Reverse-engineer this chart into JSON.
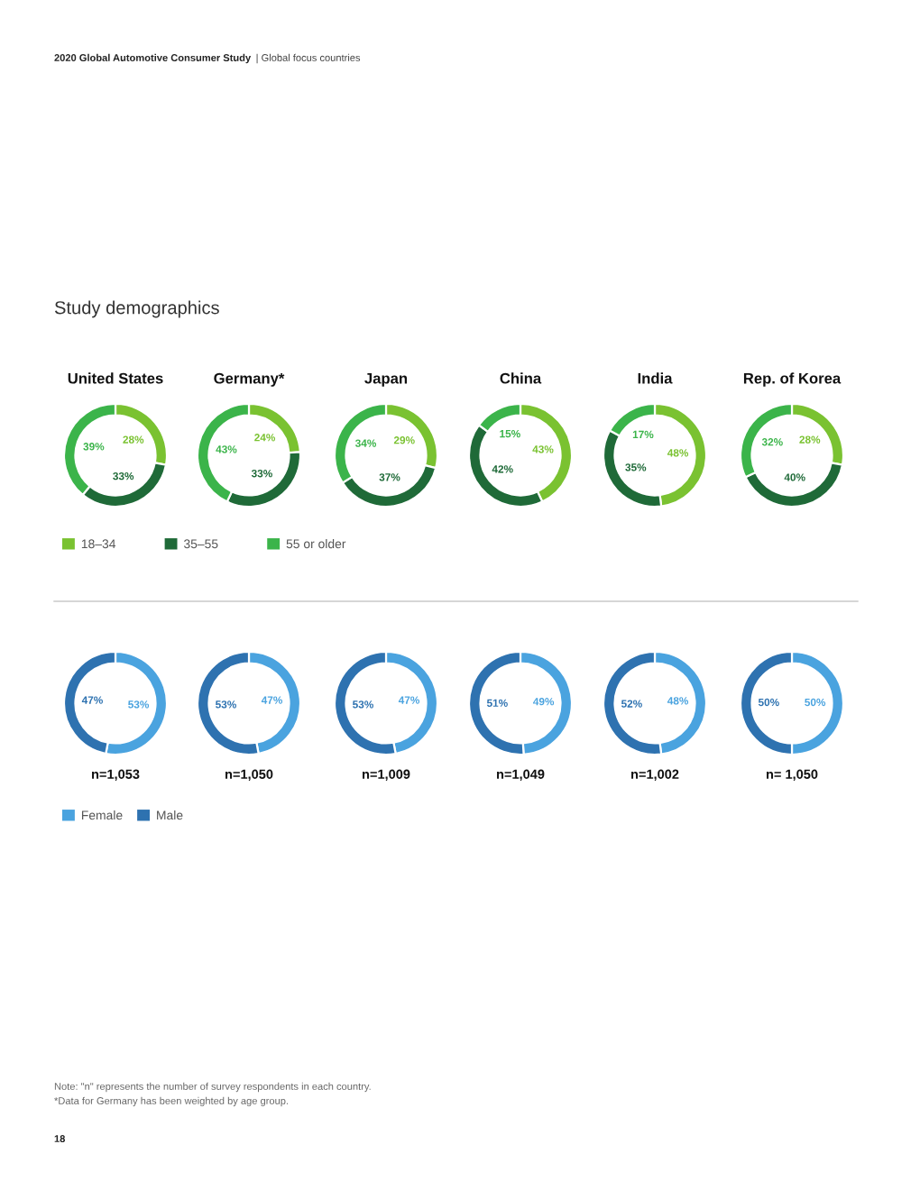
{
  "chart_data": [
    {
      "type": "other",
      "title": "Study demographics",
      "annotations": [
        "2020 Global Automotive Consumer Study",
        "| Global focus countries"
      ]
    },
    {
      "type": "donut",
      "title": "United States",
      "categories": [
        "18–34",
        "35–55",
        "55 or older"
      ],
      "values": [
        28,
        33,
        39
      ],
      "colors": [
        "#7ac231",
        "#1f6a38",
        "#3bb44a"
      ],
      "value_labels": [
        "28%",
        "33%",
        "39%"
      ],
      "legend": "bottom"
    },
    {
      "type": "donut",
      "title": "Germany*",
      "categories": [
        null,
        null,
        null
      ],
      "values": [
        24,
        33,
        43
      ],
      "colors": [
        "#7ac231",
        "#1f6a38",
        "#3bb44a"
      ],
      "value_labels": [
        "24%",
        "33%",
        "43%"
      ]
    },
    {
      "type": "donut",
      "title": "Japan",
      "categories": [
        null,
        null,
        null
      ],
      "values": [
        29,
        37,
        34
      ],
      "colors": [
        "#7ac231",
        "#1f6a38",
        "#3bb44a"
      ],
      "value_labels": [
        "29%",
        "37%",
        "34%"
      ]
    },
    {
      "type": "donut",
      "title": "China",
      "categories": [
        null,
        null,
        null
      ],
      "values": [
        43,
        42,
        15
      ],
      "colors": [
        "#7ac231",
        "#1f6a38",
        "#3bb44a"
      ],
      "value_labels": [
        "43%",
        "42%",
        "15%"
      ]
    },
    {
      "type": "donut",
      "title": "India",
      "categories": [
        null,
        null,
        null
      ],
      "values": [
        48,
        35,
        17
      ],
      "colors": [
        "#7ac231",
        "#1f6a38",
        "#3bb44a"
      ],
      "value_labels": [
        "48%",
        "35%",
        "17%"
      ]
    },
    {
      "type": "donut",
      "title": "Rep. of Korea",
      "categories": [
        null,
        null,
        null
      ],
      "values": [
        28,
        40,
        32
      ],
      "colors": [
        "#7ac231",
        "#1f6a38",
        "#3bb44a"
      ],
      "value_labels": [
        "28%",
        "40%",
        "32%"
      ]
    },
    {
      "type": "donut",
      "categories": [
        "Female",
        "Male"
      ],
      "values": [
        53,
        47
      ],
      "colors": [
        "#4aa3df",
        "#2e72b0"
      ],
      "value_labels": [
        "53%",
        "47%"
      ],
      "annotations": [
        "n=1,053"
      ],
      "legend": "bottom"
    },
    {
      "type": "donut",
      "categories": [
        null,
        null
      ],
      "values": [
        47,
        53
      ],
      "colors": [
        "#4aa3df",
        "#2e72b0"
      ],
      "value_labels": [
        "47%",
        "53%"
      ],
      "annotations": [
        "n=1,050"
      ]
    },
    {
      "type": "donut",
      "categories": [
        null,
        null
      ],
      "values": [
        47,
        53
      ],
      "colors": [
        "#4aa3df",
        "#2e72b0"
      ],
      "value_labels": [
        "47%",
        "53%"
      ],
      "annotations": [
        "n=1,009"
      ]
    },
    {
      "type": "donut",
      "categories": [
        null,
        null
      ],
      "values": [
        49,
        51
      ],
      "colors": [
        "#4aa3df",
        "#2e72b0"
      ],
      "value_labels": [
        "49%",
        "51%"
      ],
      "annotations": [
        "n=1,049"
      ]
    },
    {
      "type": "donut",
      "categories": [
        null,
        null
      ],
      "values": [
        48,
        52
      ],
      "colors": [
        "#4aa3df",
        "#2e72b0"
      ],
      "value_labels": [
        "48%",
        "52%"
      ],
      "annotations": [
        "n=1,002"
      ]
    },
    {
      "type": "donut",
      "categories": [
        null,
        null
      ],
      "values": [
        50,
        50
      ],
      "colors": [
        "#4aa3df",
        "#2e72b0"
      ],
      "value_labels": [
        "50%",
        "50%"
      ],
      "annotations": [
        "n= 1,050"
      ]
    },
    {
      "type": "other",
      "annotations": [
        "Note: \"n\" represents the number of survey respondents in each country.",
        "*Data for Germany has been weighted by age group.",
        "18"
      ]
    }
  ]
}
